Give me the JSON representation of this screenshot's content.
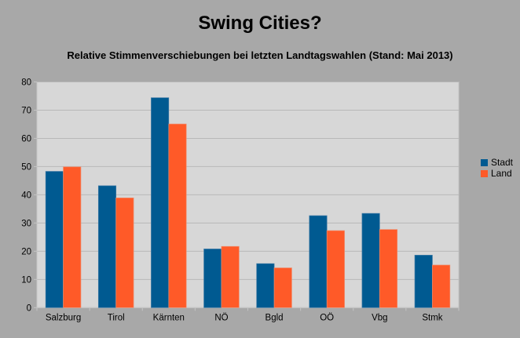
{
  "chart_data": {
    "type": "bar",
    "title": "Swing Cities?",
    "subtitle": "Relative Stimmenverschiebungen bei letzten Landtagswahlen (Stand: Mai 2013)",
    "xlabel": "",
    "ylabel": "",
    "ylim": [
      0,
      80
    ],
    "yticks": [
      0,
      10,
      20,
      30,
      40,
      50,
      60,
      70,
      80
    ],
    "grid": true,
    "legend_position": "right",
    "categories": [
      "Salzburg",
      "Tirol",
      "Kärnten",
      "NÖ",
      "Bgld",
      "OÖ",
      "Vbg",
      "Stmk"
    ],
    "series": [
      {
        "name": "Stadt",
        "color": "#005a91",
        "values": [
          48.3,
          43.2,
          74.4,
          20.8,
          15.6,
          32.6,
          33.4,
          18.6
        ]
      },
      {
        "name": "Land",
        "color": "#ff5a28",
        "values": [
          49.9,
          38.9,
          65.1,
          21.7,
          14.1,
          27.3,
          27.7,
          15.1
        ]
      }
    ]
  }
}
